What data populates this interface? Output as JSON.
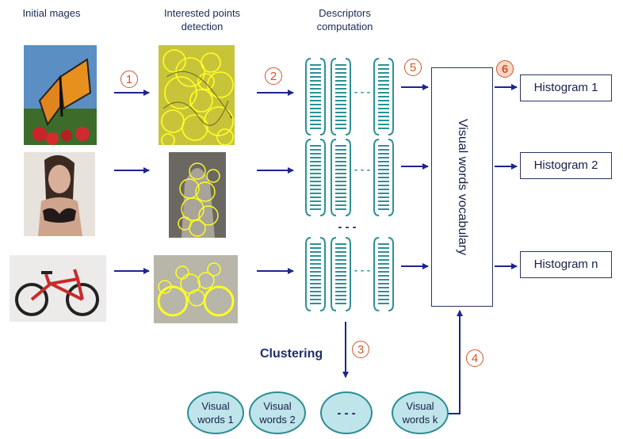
{
  "headers": {
    "initial_images": "Initial mages",
    "interest_points": "Interested points\ndetection",
    "descriptors": "Descriptors\ncomputation"
  },
  "steps": [
    "1",
    "2",
    "3",
    "4",
    "5",
    "6"
  ],
  "vocabulary_label": "Visual words vocabulary",
  "histograms": [
    "Histogram 1",
    "Histogram 2",
    "Histogram n"
  ],
  "clustering_label": "Clustering",
  "visual_words": [
    "Visual\nwords 1",
    "Visual\nwords 2",
    "- - -",
    "Visual\nwords k"
  ],
  "descriptor_dashes": "- - -",
  "descriptor_vertical_dots": "- - -",
  "colors": {
    "arrow": "#1c2590",
    "step": "#d2552b",
    "descriptor": "#2c9196",
    "oval_fill": "#bfe4ea",
    "keypoint": "#ffff22"
  }
}
